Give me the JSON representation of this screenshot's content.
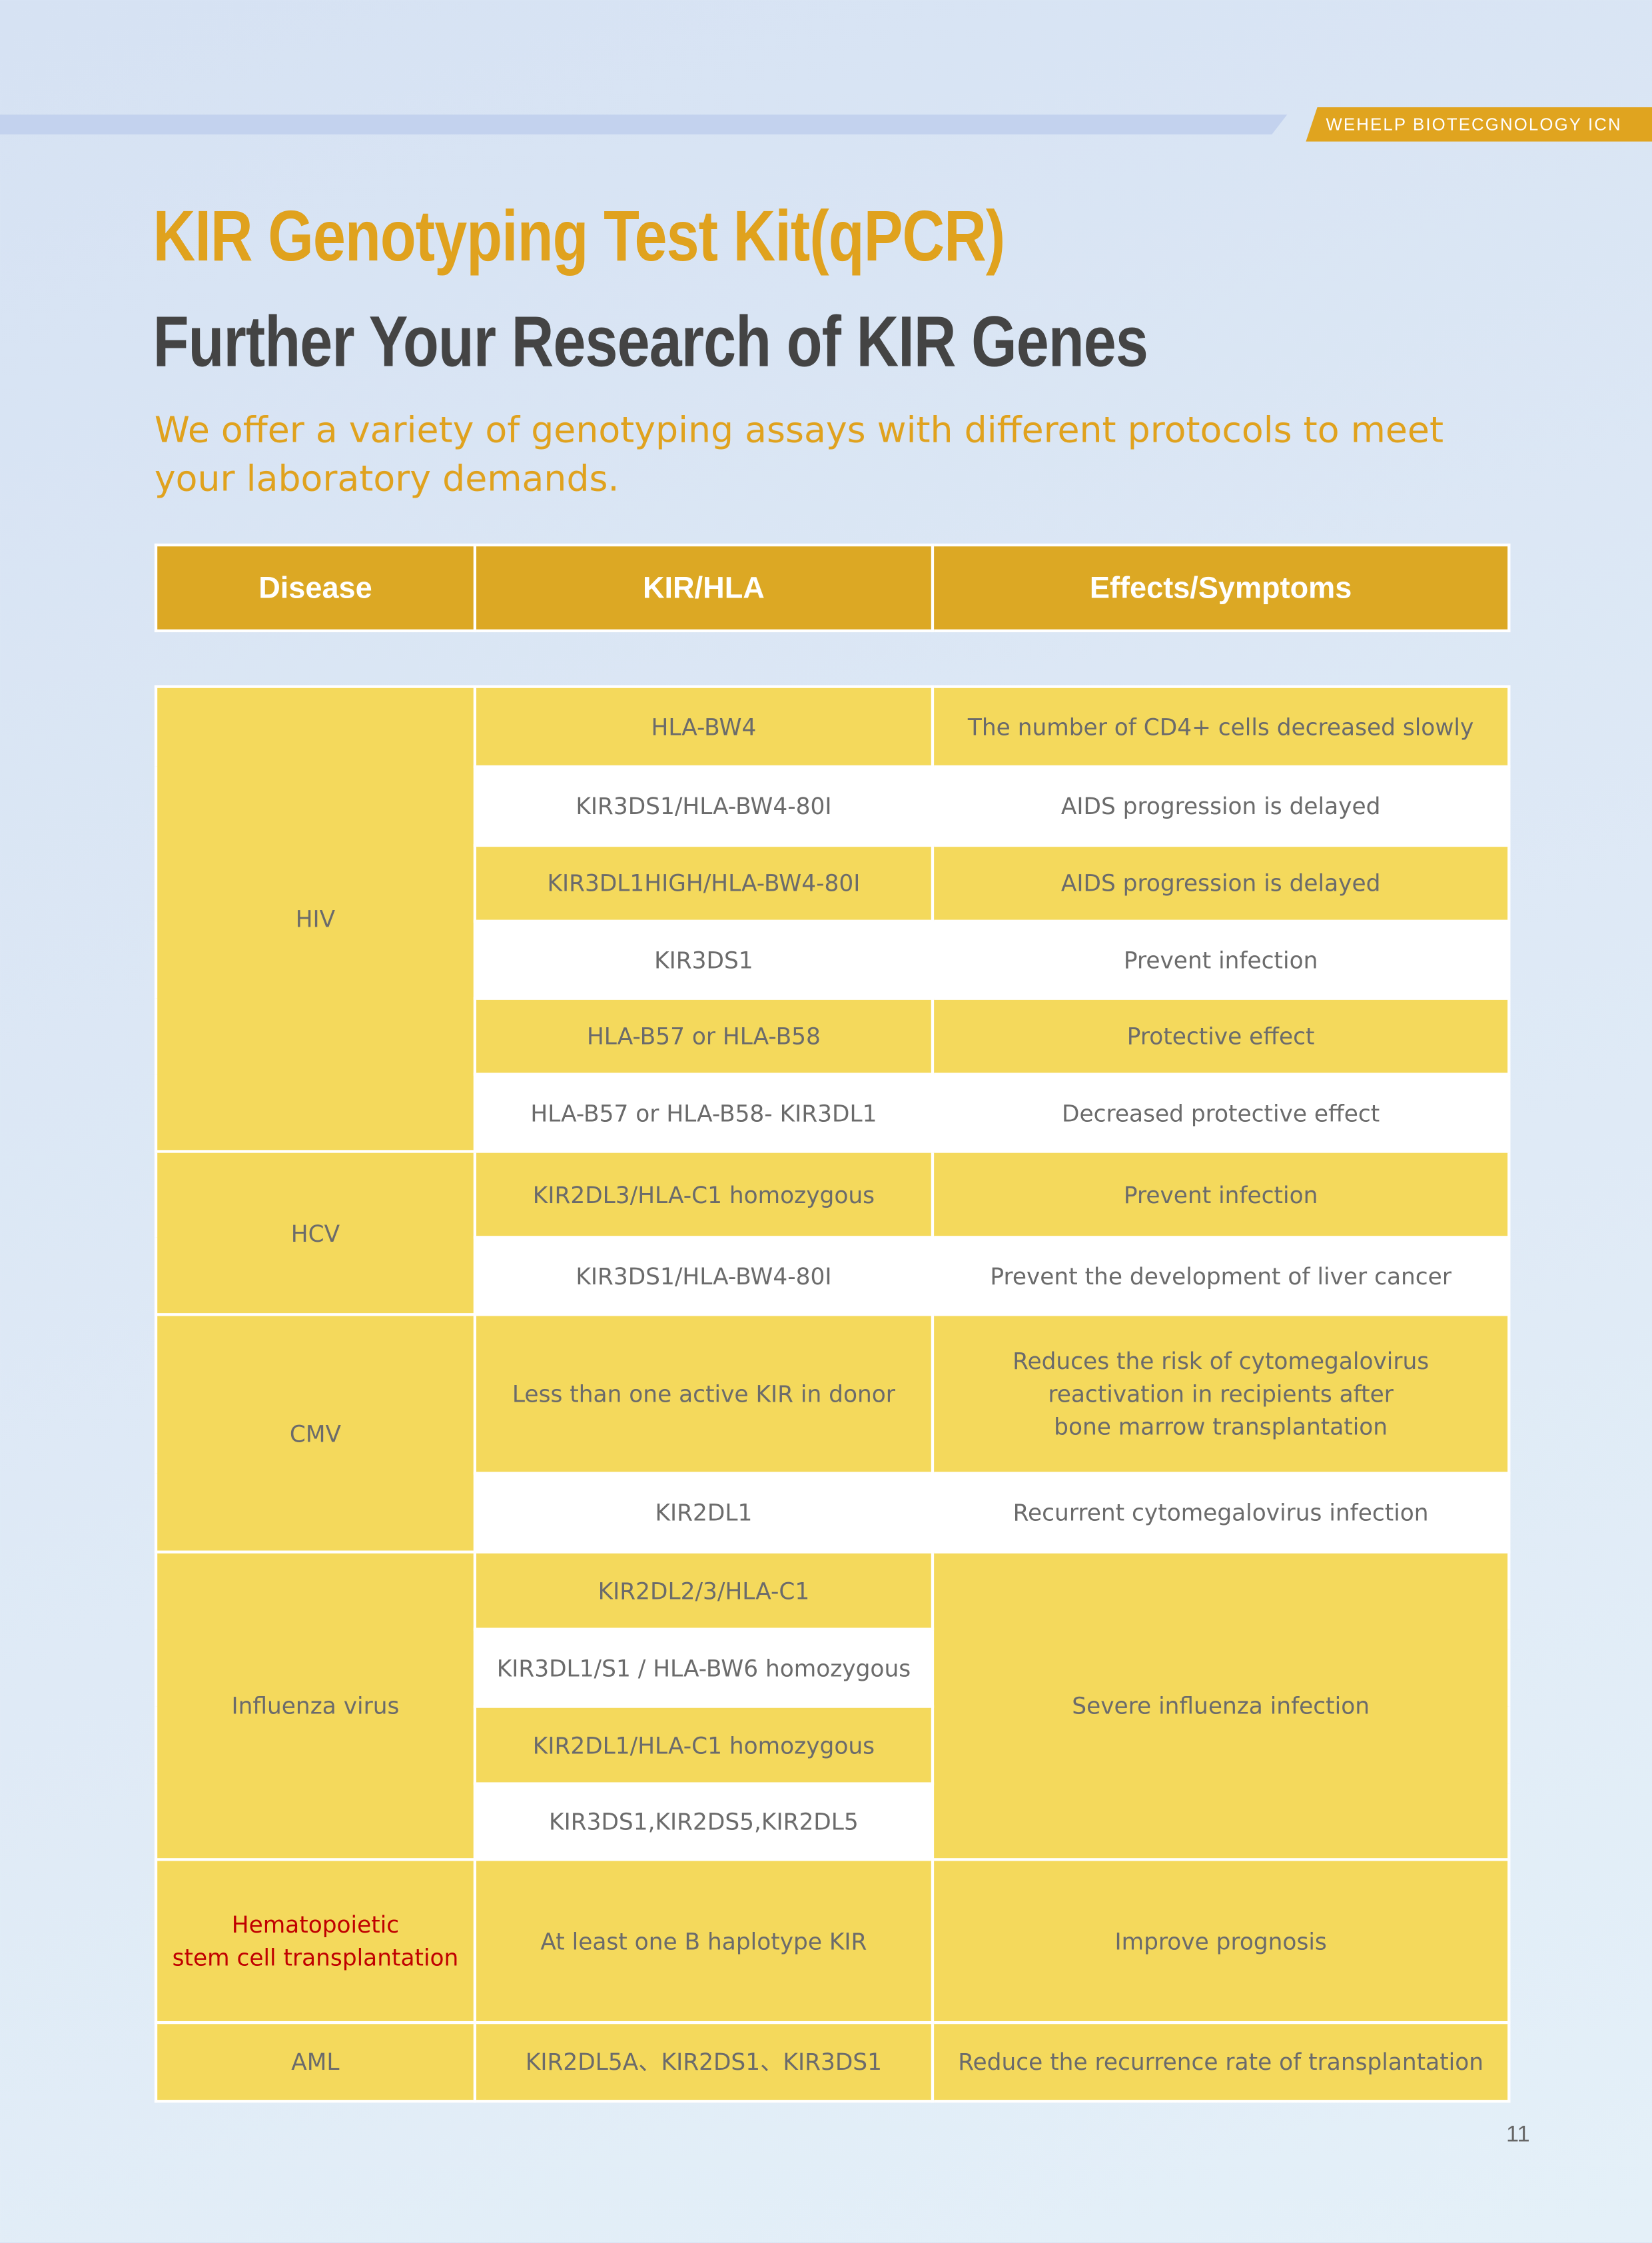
{
  "brand": "WEHELP BIOTECGNOLOGY ICN",
  "header": {
    "title": "KIR Genotyping Test Kit(qPCR)",
    "subtitle": "Further Your Research of KIR Genes",
    "tagline": "We offer a variety of genotyping assays with different protocols to meet your laboratory demands."
  },
  "table": {
    "header": [
      "Disease",
      "KIR/HLA",
      "Effects/Symptoms"
    ],
    "groups": [
      {
        "disease": "HIV",
        "rows": [
          {
            "kir": "HLA-BW4",
            "effect": "The number of CD4+ cells decreased slowly"
          },
          {
            "kir": "KIR3DS1/HLA-BW4-80I",
            "effect": "AIDS progression is delayed"
          },
          {
            "kir": "KIR3DL1HIGH/HLA-BW4-80I",
            "effect": "AIDS progression is delayed"
          },
          {
            "kir": "KIR3DS1",
            "effect": "Prevent infection"
          },
          {
            "kir": "HLA-B57 or HLA-B58",
            "effect": "Protective effect"
          },
          {
            "kir": "HLA-B57 or HLA-B58- KIR3DL1",
            "effect": "Decreased protective effect"
          }
        ]
      },
      {
        "disease": "HCV",
        "rows": [
          {
            "kir": "KIR2DL3/HLA-C1 homozygous",
            "effect": "Prevent infection"
          },
          {
            "kir": "KIR3DS1/HLA-BW4-80I",
            "effect": "Prevent the development of liver cancer"
          }
        ]
      },
      {
        "disease": "CMV",
        "rows": [
          {
            "kir": "Less than one active KIR in donor",
            "effect": "Reduces the risk of cytomegalovirus\nreactivation in recipients after\nbone marrow transplantation"
          },
          {
            "kir": "KIR2DL1",
            "effect": "Recurrent cytomegalovirus infection"
          }
        ]
      },
      {
        "disease": "Influenza virus",
        "effect": "Severe influenza infection",
        "rows": [
          {
            "kir": "KIR2DL2/3/HLA-C1"
          },
          {
            "kir": "KIR3DL1/S1 / HLA-BW6 homozygous"
          },
          {
            "kir": "KIR2DL1/HLA-C1  homozygous"
          },
          {
            "kir": "KIR3DS1,KIR2DS5,KIR2DL5"
          }
        ]
      },
      {
        "disease": "Hematopoietic\nstem cell transplantation",
        "rows": [
          {
            "kir": "At least one B haplotype KIR",
            "effect": "Improve prognosis"
          }
        ]
      },
      {
        "disease": "AML",
        "rows": [
          {
            "kir": "KIR2DL5A、KIR2DS1、KIR3DS1",
            "effect": "Reduce the recurrence rate of transplantation"
          }
        ]
      }
    ]
  },
  "page_number": "11"
}
